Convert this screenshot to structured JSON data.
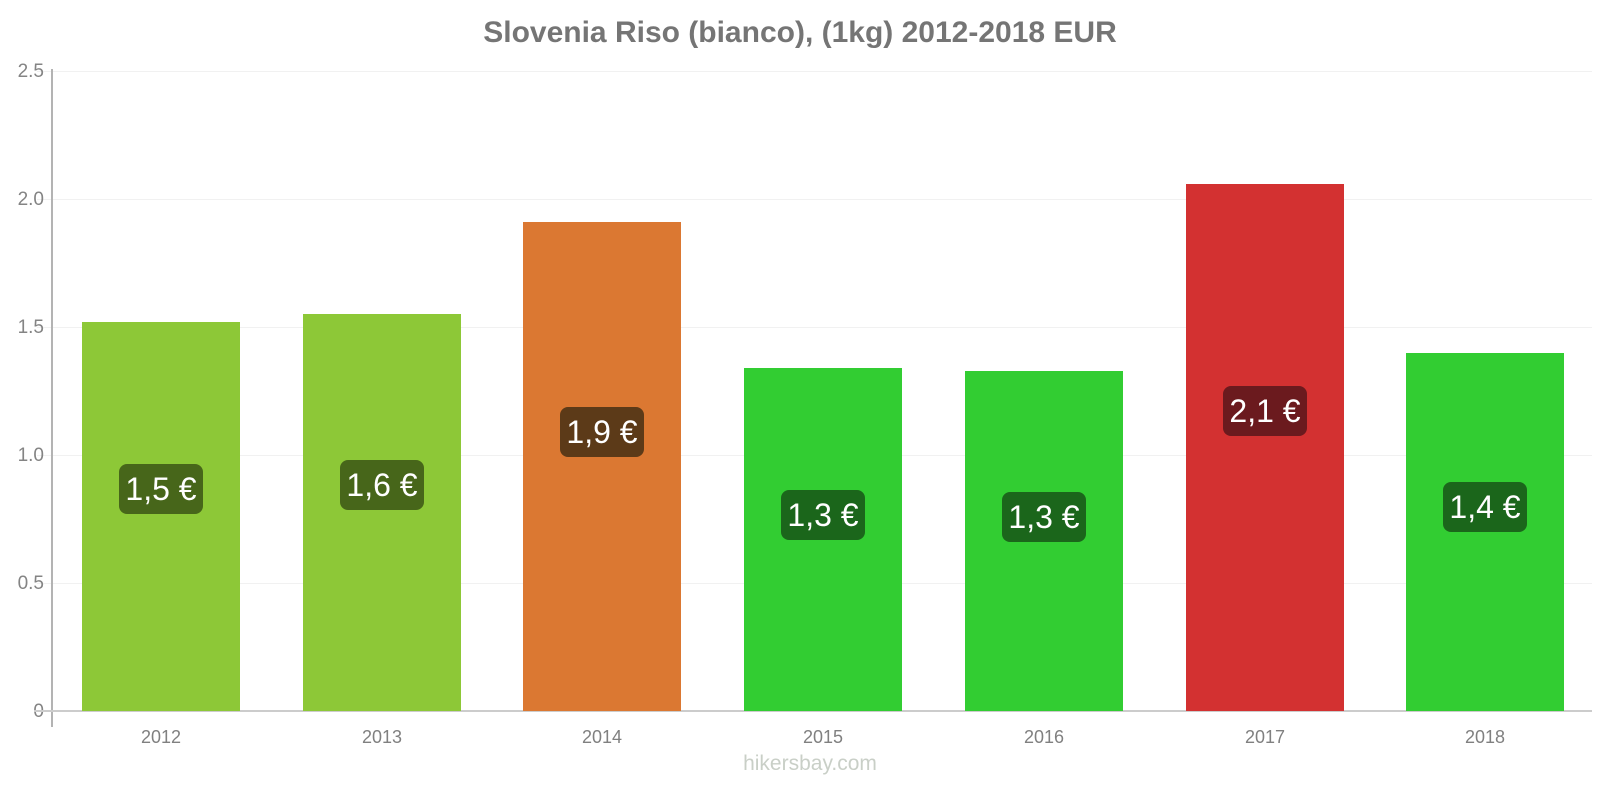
{
  "title": "Slovenia Riso (bianco), (1kg) 2012-2018 EUR",
  "watermark": "hikersbay.com",
  "chart_data": {
    "type": "bar",
    "title": "Slovenia Riso (bianco), (1kg) 2012-2018 EUR",
    "categories": [
      "2012",
      "2013",
      "2014",
      "2015",
      "2016",
      "2017",
      "2018"
    ],
    "values": [
      1.52,
      1.55,
      1.91,
      1.34,
      1.33,
      2.06,
      1.4
    ],
    "bar_labels": [
      "1,5 €",
      "1,6 €",
      "1,9 €",
      "1,3 €",
      "1,3 €",
      "2,1 €",
      "1,4 €"
    ],
    "bar_colors": [
      "#8DC837",
      "#8DC837",
      "#DB7832",
      "#32CD32",
      "#32CD32",
      "#D33131",
      "#32CD32"
    ],
    "label_bg_colors": [
      "#47661A",
      "#47661A",
      "#5C3A18",
      "#1B661B",
      "#1B661B",
      "#6B1A1E",
      "#1B661B"
    ],
    "label_text_color": "#ffffff",
    "xlabel": "",
    "ylabel": "",
    "ylim": [
      0,
      2.5
    ],
    "ytick_labels": [
      "0",
      "0.5",
      "1.0",
      "1.5",
      "2.0",
      "2.5"
    ],
    "ytick_values": [
      0,
      0.5,
      1.0,
      1.5,
      2.0,
      2.5
    ],
    "legend": false,
    "grid": "horizontal-faint",
    "currency": "EUR"
  },
  "styles": {
    "title_color": "#757575",
    "y_axis_color": "#b3b3b3",
    "x_axis_color": "#cccccc",
    "gridline_color": "#f1f1f1",
    "tick_label_color": "#848484",
    "watermark_color": "#c9cfc7",
    "background": "#ffffff"
  }
}
